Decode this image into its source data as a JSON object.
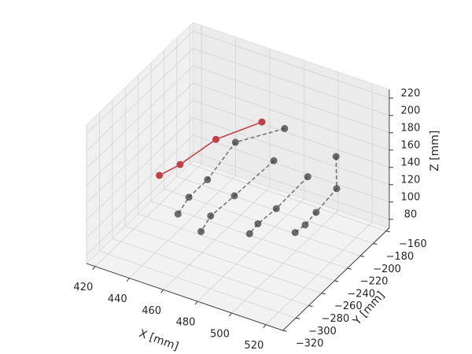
{
  "chart_data": {
    "type": "scatter3d",
    "xlabel": "X [mm]",
    "ylabel": "Y [mm]",
    "zlabel": "Z [mm]",
    "xlim": [
      415,
      530
    ],
    "ylim": [
      -320,
      -155
    ],
    "zlim": [
      70,
      230
    ],
    "xticks": [
      420,
      440,
      460,
      480,
      500,
      520
    ],
    "yticks": [
      {
        "value": -320,
        "label": "−320"
      },
      {
        "value": -300,
        "label": "−300"
      },
      {
        "value": -280,
        "label": "−280"
      },
      {
        "value": -260,
        "label": "−260"
      },
      {
        "value": -240,
        "label": "−240"
      },
      {
        "value": -220,
        "label": "−220"
      },
      {
        "value": -200,
        "label": "−200"
      },
      {
        "value": -180,
        "label": "−180"
      },
      {
        "value": -160,
        "label": "−160"
      }
    ],
    "zticks": [
      80,
      100,
      120,
      140,
      160,
      180,
      200,
      220
    ],
    "grid": true,
    "series": [
      {
        "color": "#c0404a",
        "linestyle": "solid",
        "x": [
          438,
          446,
          456,
          472
        ],
        "y": [
          -268,
          -257,
          -228,
          -199
        ],
        "z": [
          150,
          160,
          175,
          185
        ]
      },
      {
        "color": "#333333",
        "linestyle": "dashed",
        "x": [
          477,
          458,
          453,
          447,
          444
        ],
        "y": [
          -177,
          -203,
          -233,
          -246,
          -255
        ],
        "z": [
          165,
          155,
          130,
          115,
          100
        ]
      },
      {
        "color": "#333333",
        "linestyle": "dashed",
        "x": [
          479,
          468,
          459,
          456
        ],
        "y": [
          -199,
          -231,
          -244,
          -251
        ],
        "z": [
          145,
          120,
          100,
          85
        ]
      },
      {
        "color": "#333333",
        "linestyle": "dashed",
        "x": [
          497,
          488,
          481,
          478
        ],
        "y": [
          -194,
          -219,
          -229,
          -234
        ],
        "z": [
          135,
          110,
          95,
          85
        ]
      },
      {
        "color": "#333333",
        "linestyle": "dashed",
        "x": [
          506,
          509,
          503,
          500,
          496
        ],
        "y": [
          -174,
          -181,
          -197,
          -206,
          -211
        ],
        "z": [
          150,
          120,
          100,
          90,
          82
        ]
      }
    ]
  }
}
